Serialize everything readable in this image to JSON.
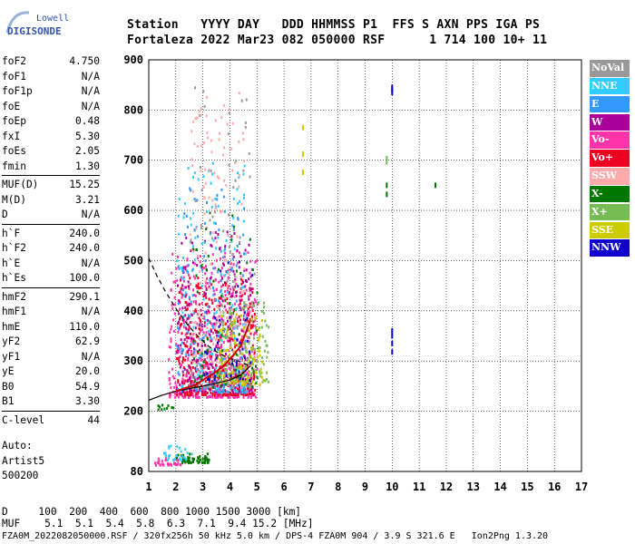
{
  "logo": {
    "line1": "Lowell",
    "line2": "DIGISONDE"
  },
  "header": {
    "row1": "Station   YYYY DAY   DDD HHMMSS P1  FFS S AXN PPS IGA PS",
    "row2": "Fortaleza 2022 Mar23 082 050000 RSF      1 714 100 10+ 11"
  },
  "params": [
    {
      "group": [
        {
          "key": "foF2",
          "value": "4.750"
        },
        {
          "key": "foF1",
          "value": "N/A"
        },
        {
          "key": "foF1p",
          "value": "N/A"
        },
        {
          "key": "foE",
          "value": "N/A"
        },
        {
          "key": "foEp",
          "value": "0.48"
        },
        {
          "key": "fxI",
          "value": "5.30"
        },
        {
          "key": "foEs",
          "value": "2.05"
        },
        {
          "key": "fmin",
          "value": "1.30"
        }
      ]
    },
    {
      "group": [
        {
          "key": "MUF(D)",
          "value": "15.25"
        },
        {
          "key": "M(D)",
          "value": "3.21"
        },
        {
          "key": "D",
          "value": "N/A"
        }
      ]
    },
    {
      "group": [
        {
          "key": "h`F",
          "value": "240.0"
        },
        {
          "key": "h`F2",
          "value": "240.0"
        },
        {
          "key": "h`E",
          "value": "N/A"
        },
        {
          "key": "h`Es",
          "value": "100.0"
        }
      ]
    },
    {
      "group": [
        {
          "key": "hmF2",
          "value": "290.1"
        },
        {
          "key": "hmF1",
          "value": "N/A"
        },
        {
          "key": "hmE",
          "value": "110.0"
        },
        {
          "key": "yF2",
          "value": "62.9"
        },
        {
          "key": "yF1",
          "value": "N/A"
        },
        {
          "key": "yE",
          "value": "20.0"
        },
        {
          "key": "B0",
          "value": "54.9"
        },
        {
          "key": "B1",
          "value": "3.30"
        }
      ]
    },
    {
      "group": [
        {
          "key": "C-level",
          "value": "44"
        }
      ]
    }
  ],
  "auto": {
    "line1": "Auto:",
    "line2": "Artist5",
    "line3": "500200"
  },
  "legend": [
    {
      "label": "NoVal",
      "color": "#999999"
    },
    {
      "label": "NNE",
      "color": "#33ccff"
    },
    {
      "label": "E",
      "color": "#3399ff"
    },
    {
      "label": "W",
      "color": "#aa0099"
    },
    {
      "label": "Vo-",
      "color": "#ff33aa"
    },
    {
      "label": "Vo+",
      "color": "#ee0022"
    },
    {
      "label": "SSW",
      "color": "#ffaaaa"
    },
    {
      "label": "X-",
      "color": "#007700"
    },
    {
      "label": "X+",
      "color": "#77bb55"
    },
    {
      "label": "SSE",
      "color": "#cccc00"
    },
    {
      "label": "NNW",
      "color": "#1100cc"
    }
  ],
  "bottom": {
    "row1": "D     100  200  400  600  800 1000 1500 3000 [km]",
    "row2": "MUF    5.1  5.1  5.4  5.8  6.3  7.1  9.4 15.2 [MHz]",
    "row3": "FZA0M_2022082050000.RSF / 320fx256h 50 kHz 5.0 km / DPS-4 FZA0M 904 / 3.9 S 321.6 E   Ion2Png 1.3.20"
  },
  "chart_data": {
    "type": "scatter",
    "title": "",
    "xlabel": "",
    "ylabel": "",
    "xlim": [
      1,
      17
    ],
    "ylim": [
      80,
      900
    ],
    "x_ticks": [
      1,
      2,
      3,
      4,
      5,
      6,
      7,
      8,
      9,
      10,
      11,
      12,
      13,
      14,
      15,
      16,
      17
    ],
    "y_ticks": [
      80,
      200,
      300,
      400,
      500,
      600,
      700,
      800,
      900
    ],
    "grid": true,
    "legend_placement": "right",
    "traces": [
      {
        "name": "hmF2 profile (solid)",
        "color": "#000000",
        "style": "solid",
        "x": [
          1.0,
          1.5,
          2.0,
          2.5,
          3.0,
          3.5,
          4.0,
          4.4,
          4.75
        ],
        "y": [
          222,
          232,
          240,
          245,
          250,
          256,
          262,
          272,
          290
        ]
      },
      {
        "name": "virtual trace (dashed)",
        "color": "#000000",
        "style": "dashed",
        "x": [
          1.0,
          1.3,
          1.6,
          2.0,
          2.4,
          2.8,
          3.2,
          3.6,
          4.0,
          4.4,
          4.75
        ],
        "y": [
          505,
          470,
          440,
          405,
          375,
          350,
          330,
          315,
          305,
          298,
          290
        ]
      },
      {
        "name": "F2 echo curve",
        "color": "#cc0000",
        "style": "solid",
        "x": [
          2.0,
          2.3,
          2.7,
          3.0,
          3.4,
          3.8,
          4.1,
          4.4,
          4.75
        ],
        "y": [
          240,
          245,
          252,
          262,
          275,
          292,
          310,
          330,
          380
        ]
      }
    ],
    "clusters": [
      {
        "color": "#ff33aa",
        "xmin": 1.7,
        "xmax": 5.0,
        "ymin": 230,
        "ymax": 520,
        "density": 520
      },
      {
        "color": "#ee0022",
        "xmin": 2.0,
        "xmax": 4.9,
        "ymin": 235,
        "ymax": 470,
        "density": 380
      },
      {
        "color": "#aa0099",
        "xmin": 2.0,
        "xmax": 4.8,
        "ymin": 240,
        "ymax": 560,
        "density": 260
      },
      {
        "color": "#33ccff",
        "xmin": 2.0,
        "xmax": 4.6,
        "ymin": 240,
        "ymax": 700,
        "density": 170
      },
      {
        "color": "#3399ff",
        "xmin": 2.0,
        "xmax": 4.6,
        "ymin": 240,
        "ymax": 650,
        "density": 150
      },
      {
        "color": "#ffaaaa",
        "xmin": 2.5,
        "xmax": 4.6,
        "ymin": 300,
        "ymax": 840,
        "density": 160
      },
      {
        "color": "#77bb55",
        "xmin": 3.5,
        "xmax": 5.4,
        "ymin": 260,
        "ymax": 420,
        "density": 150
      },
      {
        "color": "#cccc00",
        "xmin": 3.5,
        "xmax": 5.2,
        "ymin": 255,
        "ymax": 400,
        "density": 110
      },
      {
        "color": "#007700",
        "xmin": 2.6,
        "xmax": 5.0,
        "ymin": 250,
        "ymax": 600,
        "density": 70
      },
      {
        "color": "#999999",
        "xmin": 2.5,
        "xmax": 4.9,
        "ymin": 250,
        "ymax": 880,
        "density": 80
      },
      {
        "color": "#1100cc",
        "xmin": 3.0,
        "xmax": 4.8,
        "ymin": 260,
        "ymax": 500,
        "density": 40
      },
      {
        "color": "#007700",
        "xmin": 2.0,
        "xmax": 3.2,
        "ymin": 100,
        "ymax": 118,
        "density": 60
      },
      {
        "color": "#ff33aa",
        "xmin": 1.2,
        "xmax": 2.2,
        "ymin": 95,
        "ymax": 110,
        "density": 30
      },
      {
        "color": "#33ccff",
        "xmin": 1.5,
        "xmax": 2.6,
        "ymin": 105,
        "ymax": 140,
        "density": 25
      },
      {
        "color": "#007700",
        "xmin": 1.3,
        "xmax": 2.0,
        "ymin": 205,
        "ymax": 215,
        "density": 10
      }
    ],
    "marks": [
      {
        "color": "#1100cc",
        "x": 10.0,
        "y": 840
      },
      {
        "color": "#1100cc",
        "x": 10.0,
        "y": 845
      },
      {
        "color": "#1100cc",
        "x": 10.0,
        "y": 835
      },
      {
        "color": "#1100cc",
        "x": 10.0,
        "y": 360
      },
      {
        "color": "#1100cc",
        "x": 10.0,
        "y": 350
      },
      {
        "color": "#1100cc",
        "x": 10.0,
        "y": 335
      },
      {
        "color": "#1100cc",
        "x": 10.0,
        "y": 318
      },
      {
        "color": "#cccc00",
        "x": 6.7,
        "y": 765
      },
      {
        "color": "#cccc00",
        "x": 6.7,
        "y": 712
      },
      {
        "color": "#cccc00",
        "x": 6.7,
        "y": 676
      },
      {
        "color": "#77bb55",
        "x": 9.8,
        "y": 703
      },
      {
        "color": "#77bb55",
        "x": 9.8,
        "y": 697
      },
      {
        "color": "#007700",
        "x": 9.8,
        "y": 650
      },
      {
        "color": "#007700",
        "x": 9.8,
        "y": 632
      },
      {
        "color": "#007700",
        "x": 11.6,
        "y": 650
      }
    ]
  }
}
